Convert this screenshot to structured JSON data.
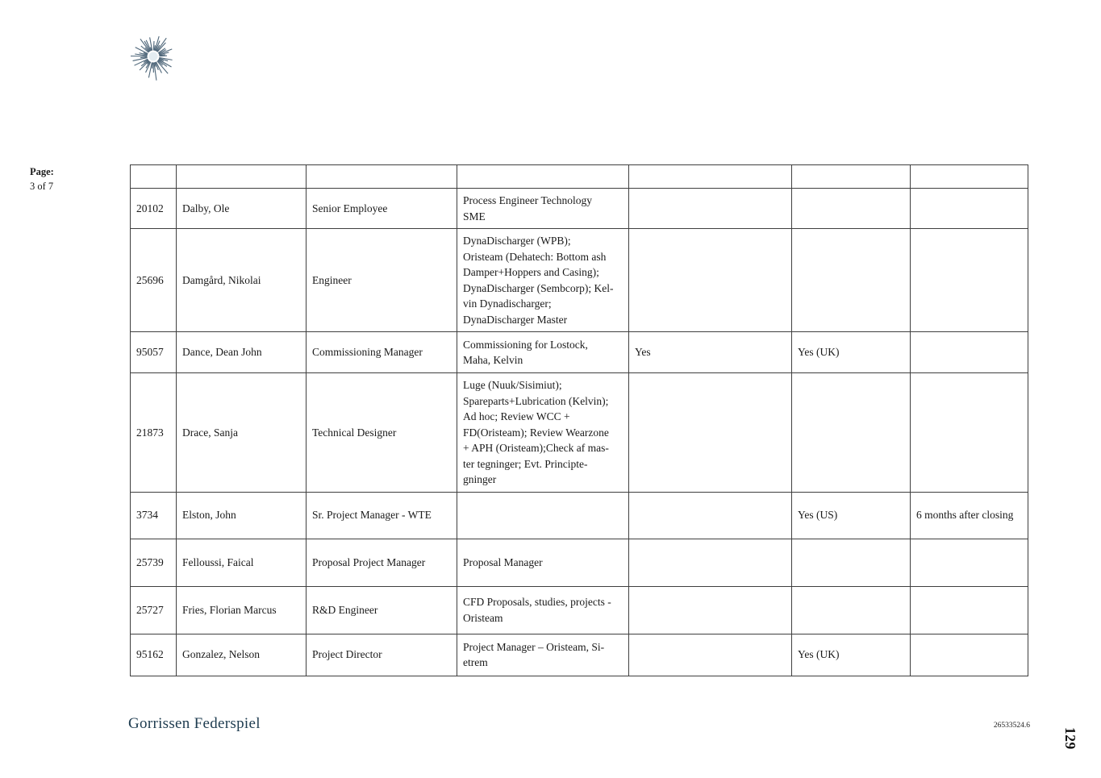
{
  "page": {
    "page_label": "Page:",
    "page_indicator": "3 of 7",
    "footer_brand": "Gorrissen Federspiel",
    "doc_number": "26533524.6",
    "side_page_number": "129"
  },
  "logo": {
    "name": "gorrissen-federspiel-sunburst-logo",
    "color": "#4d6578"
  },
  "colors": {
    "brand_text": "#1d3b4f",
    "table_border": "#3f3f3f"
  },
  "table": {
    "header": [
      "",
      "",
      "",
      "",
      "",
      "",
      ""
    ],
    "rows": [
      {
        "id": "20102",
        "name": "Dalby, Ole",
        "position": "Senior Employee",
        "description": "Process Engineer Technology\nSME",
        "col5": "",
        "col6": "",
        "col7": ""
      },
      {
        "id": "25696",
        "name": "Damgård, Nikolai",
        "position": "Engineer",
        "description": "DynaDischarger (WPB);\nOristeam (Dehatech: Bottom ash\nDamper+Hoppers and Casing);\nDynaDischarger (Sembcorp); Kel-\nvin Dynadischarger;\nDynaDischarger Master",
        "col5": "",
        "col6": "",
        "col7": ""
      },
      {
        "id": "95057",
        "name": "Dance, Dean John",
        "position": "Commissioning Manager",
        "description": "Commissioning for Lostock,\nMaha, Kelvin",
        "col5": "Yes",
        "col6": "Yes (UK)",
        "col7": ""
      },
      {
        "id": "21873",
        "name": "Drace, Sanja",
        "position": "Technical Designer",
        "description": "Luge (Nuuk/Sisimiut);\nSpareparts+Lubrication (Kelvin);\nAd hoc; Review WCC +\nFD(Oristeam); Review Wearzone\n+ APH (Oristeam);Check af mas-\nter tegninger; Evt. Principte-\ngninger",
        "col5": "",
        "col6": "",
        "col7": ""
      },
      {
        "id": "3734",
        "name": "Elston, John",
        "position": "Sr. Project Manager - WTE",
        "description": "",
        "col5": "",
        "col6": "Yes (US)",
        "col7": "6 months after closing"
      },
      {
        "id": "25739",
        "name": "Felloussi, Faical",
        "position": "Proposal Project Manager",
        "description": "Proposal Manager",
        "col5": "",
        "col6": "",
        "col7": ""
      },
      {
        "id": "25727",
        "name": "Fries, Florian Marcus",
        "position": "R&D Engineer",
        "description": "CFD Proposals, studies, projects -\nOristeam",
        "col5": "",
        "col6": "",
        "col7": ""
      },
      {
        "id": "95162",
        "name": "Gonzalez, Nelson",
        "position": "Project Director",
        "description": "Project Manager – Oristeam, Si-\netrem",
        "col5": "",
        "col6": "Yes (UK)",
        "col7": ""
      }
    ]
  }
}
